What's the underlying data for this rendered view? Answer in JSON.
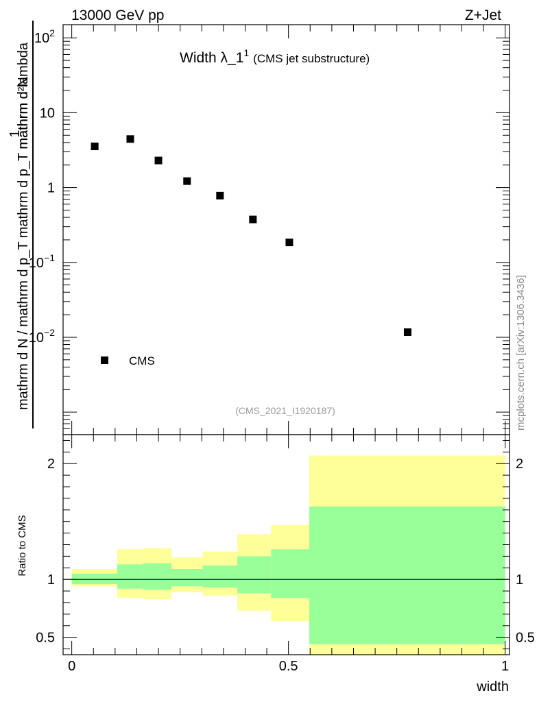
{
  "header": {
    "left": "13000 GeV pp",
    "right": "Z+Jet"
  },
  "side_label": "mcplots.cern.ch [arXiv:1306.3436]",
  "watermark": "(CMS_2021_I1920187)",
  "colors": {
    "band_outer": "#ffff99",
    "band_inner": "#99ff99",
    "marker": "#000000"
  },
  "chart_data": [
    {
      "type": "scatter",
      "title": "Width λ_1",
      "title_sup": "1",
      "title_suffix": "(CMS jet substructure)",
      "ylabel_top": "1",
      "ylabel_num": "mathrm d²N",
      "ylabel_den": "mathrm d N / mathrm d p_T mathrm d p_T mathrm d lambda",
      "yscale": "log",
      "ylim": [
        0.0005,
        150
      ],
      "xlim": [
        -0.02,
        1.01
      ],
      "y_ticks": [
        {
          "value": 100,
          "mant": "10",
          "exp": "2"
        },
        {
          "value": 10,
          "mant": "10",
          "exp": ""
        },
        {
          "value": 1,
          "mant": "1",
          "exp": ""
        },
        {
          "value": 0.1,
          "mant": "10",
          "exp": "−1"
        },
        {
          "value": 0.01,
          "mant": "10",
          "exp": "−2"
        }
      ],
      "legend": {
        "entries": [
          "CMS"
        ],
        "placement": "bottom-left"
      },
      "series": [
        {
          "name": "CMS",
          "x": [
            0.053,
            0.135,
            0.2,
            0.266,
            0.342,
            0.418,
            0.502,
            0.775
          ],
          "y": [
            3.55,
            4.45,
            2.3,
            1.22,
            0.78,
            0.375,
            0.185,
            0.0117
          ]
        }
      ]
    },
    {
      "type": "area",
      "ylabel": "Ratio to CMS",
      "xlabel": "width",
      "ylim": [
        0.35,
        2.25
      ],
      "xlim": [
        -0.02,
        1.01
      ],
      "reference": 1.0,
      "x_ticks": [
        {
          "value": 0,
          "label": "0"
        },
        {
          "value": 0.5,
          "label": "0.5"
        },
        {
          "value": 1,
          "label": "1"
        }
      ],
      "y_ticks": [
        {
          "value": 2,
          "label": "2"
        },
        {
          "value": 1,
          "label": "1"
        },
        {
          "value": 0.5,
          "label": "0.5"
        }
      ],
      "bins": [
        {
          "x0": 0.0,
          "x1": 0.105,
          "inner": [
            0.96,
            1.05
          ],
          "outer": [
            0.94,
            1.09
          ]
        },
        {
          "x0": 0.105,
          "x1": 0.165,
          "inner": [
            0.92,
            1.13
          ],
          "outer": [
            0.84,
            1.26
          ]
        },
        {
          "x0": 0.165,
          "x1": 0.23,
          "inner": [
            0.91,
            1.14
          ],
          "outer": [
            0.83,
            1.27
          ]
        },
        {
          "x0": 0.23,
          "x1": 0.302,
          "inner": [
            0.94,
            1.09
          ],
          "outer": [
            0.89,
            1.19
          ]
        },
        {
          "x0": 0.302,
          "x1": 0.382,
          "inner": [
            0.93,
            1.12
          ],
          "outer": [
            0.86,
            1.24
          ]
        },
        {
          "x0": 0.382,
          "x1": 0.46,
          "inner": [
            0.88,
            1.2
          ],
          "outer": [
            0.73,
            1.39
          ]
        },
        {
          "x0": 0.46,
          "x1": 0.548,
          "inner": [
            0.84,
            1.26
          ],
          "outer": [
            0.64,
            1.47
          ]
        },
        {
          "x0": 0.548,
          "x1": 1.0,
          "inner": [
            0.44,
            1.63
          ],
          "outer": [
            0.35,
            2.07
          ]
        }
      ]
    }
  ]
}
